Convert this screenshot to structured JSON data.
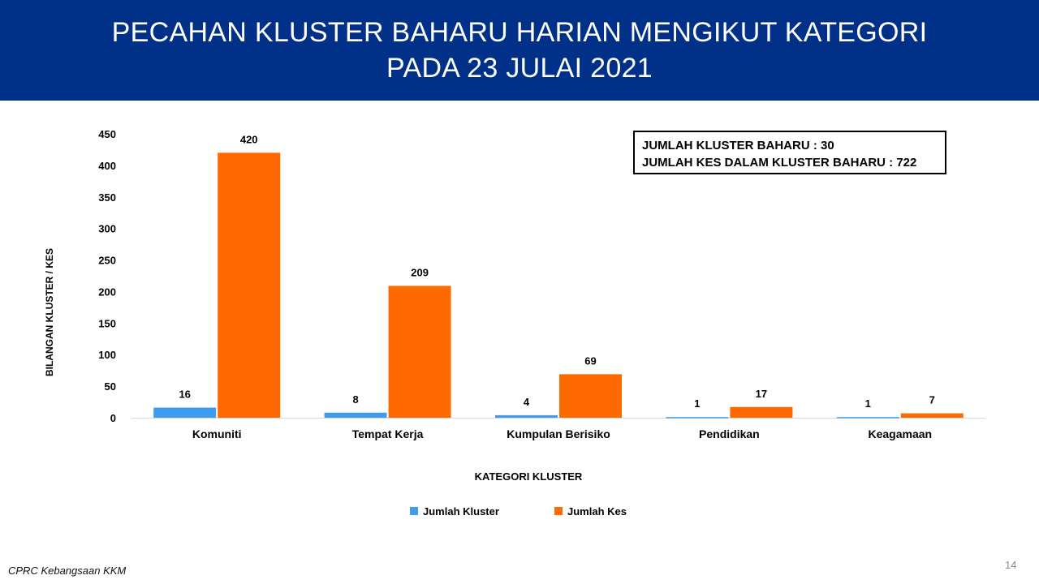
{
  "header": {
    "title_line1": "PECAHAN KLUSTER BAHARU HARIAN MENGIKUT KATEGORI",
    "title_line2": "PADA 23 JULAI 2021"
  },
  "summary": {
    "line1": "JUMLAH KLUSTER BAHARU : 30",
    "line2": "JUMLAH KES DALAM KLUSTER BAHARU : 722"
  },
  "chart_data": {
    "type": "bar",
    "categories": [
      "Komuniti",
      "Tempat Kerja",
      "Kumpulan Berisiko",
      "Pendidikan",
      "Keagamaan"
    ],
    "series": [
      {
        "name": "Jumlah Kluster",
        "values": [
          16,
          8,
          4,
          1,
          1
        ],
        "color": "#3d9cf0"
      },
      {
        "name": "Jumlah Kes",
        "values": [
          420,
          209,
          69,
          17,
          7
        ],
        "color": "#ff6a00"
      }
    ],
    "xlabel": "KATEGORI KLUSTER",
    "ylabel": "BILANGAN KLUSTER / KES",
    "ylim": [
      0,
      450
    ],
    "yticks": [
      0,
      50,
      100,
      150,
      200,
      250,
      300,
      350,
      400,
      450
    ],
    "grid": false,
    "legend": "bottom-center"
  },
  "footer": {
    "source": "CPRC Kebangsaan KKM",
    "page_number": "14"
  }
}
